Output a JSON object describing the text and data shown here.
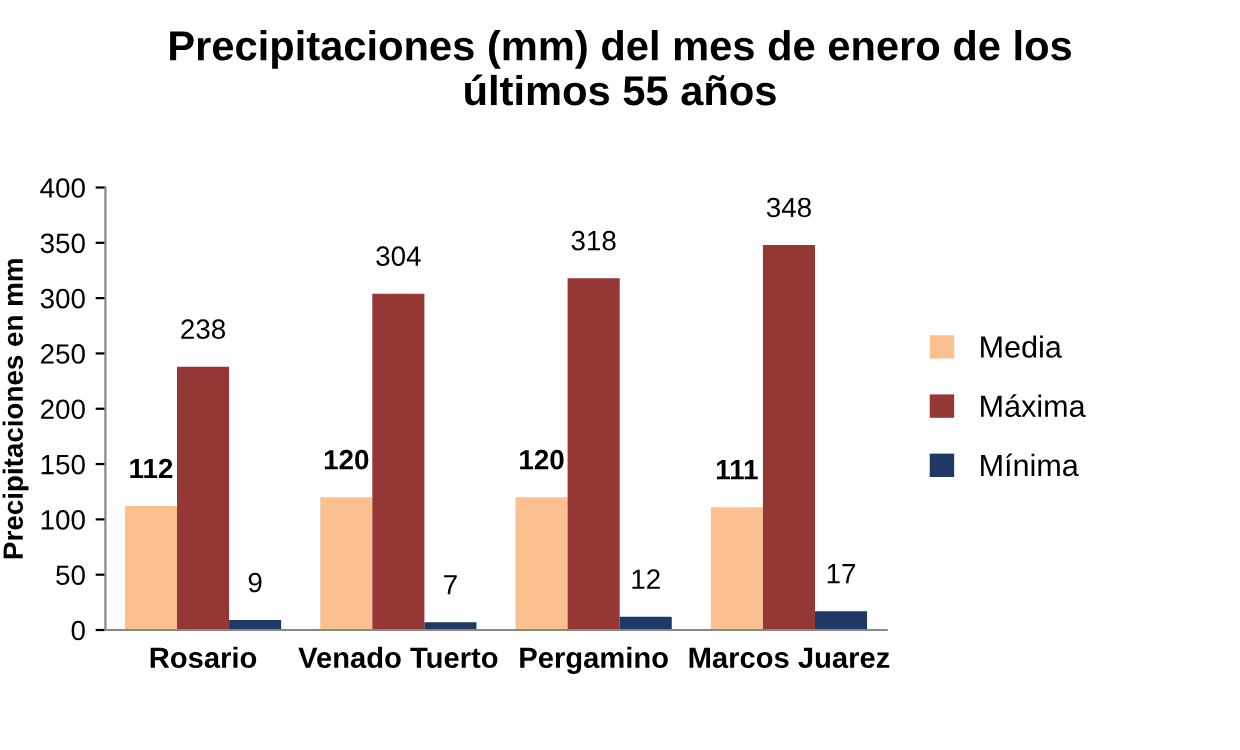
{
  "chart_data": {
    "type": "bar",
    "title": "Precipitaciones (mm) del mes de enero de los\núltimos 55 años",
    "ylabel": "Precipitaciones en mm",
    "categories": [
      "Rosario",
      "Venado Tuerto",
      "Pergamino",
      "Marcos Juarez"
    ],
    "series": [
      {
        "name": "Media",
        "color": "#fac090",
        "values": [
          112,
          120,
          120,
          111
        ]
      },
      {
        "name": "Máxima",
        "color": "#953735",
        "values": [
          238,
          304,
          318,
          348
        ]
      },
      {
        "name": "Mínima",
        "color": "#1f3864",
        "values": [
          9,
          7,
          12,
          17
        ]
      }
    ],
    "ylim": [
      0,
      400
    ],
    "yticks": [
      0,
      50,
      100,
      150,
      200,
      250,
      300,
      350,
      400
    ],
    "grid": false,
    "legend": "right",
    "data_labels": true
  }
}
